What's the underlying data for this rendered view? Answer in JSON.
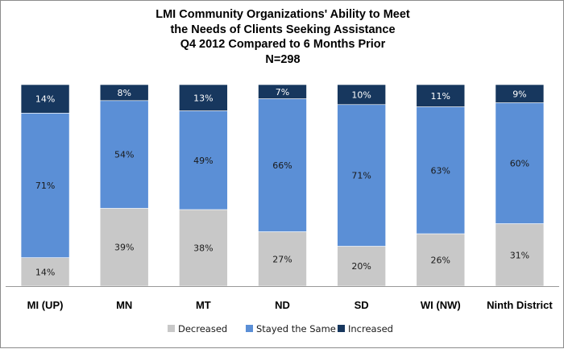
{
  "chart_data": {
    "type": "bar",
    "stacked": true,
    "percent_stacked": true,
    "title_lines": [
      "LMI Community Organizations'  Ability to Meet",
      "the Needs of Clients Seeking Assistance",
      "Q4 2012 Compared to 6 Months Prior",
      "N=298"
    ],
    "categories": [
      "MI (UP)",
      "MN",
      "MT",
      "ND",
      "SD",
      "WI (NW)",
      "Ninth District"
    ],
    "series": [
      {
        "name": "Decreased",
        "color": "#c8c8c8",
        "values": [
          14,
          39,
          38,
          27,
          20,
          26,
          31
        ],
        "labels": [
          "14%",
          "39%",
          "38%",
          "27%",
          "20%",
          "26%",
          "31%"
        ]
      },
      {
        "name": "Stayed the Same",
        "color": "#5b8fd6",
        "values": [
          71,
          54,
          49,
          66,
          71,
          63,
          60
        ],
        "labels": [
          "71%",
          "54%",
          "49%",
          "66%",
          "71%",
          "63%",
          "60%"
        ]
      },
      {
        "name": "Increased",
        "color": "#17375e",
        "values": [
          14,
          8,
          13,
          7,
          10,
          11,
          9
        ],
        "labels": [
          "14%",
          "8%",
          "13%",
          "7%",
          "10%",
          "11%",
          "9%"
        ]
      }
    ],
    "ylim": [
      0,
      100
    ],
    "grid": false,
    "legend_position": "bottom"
  }
}
